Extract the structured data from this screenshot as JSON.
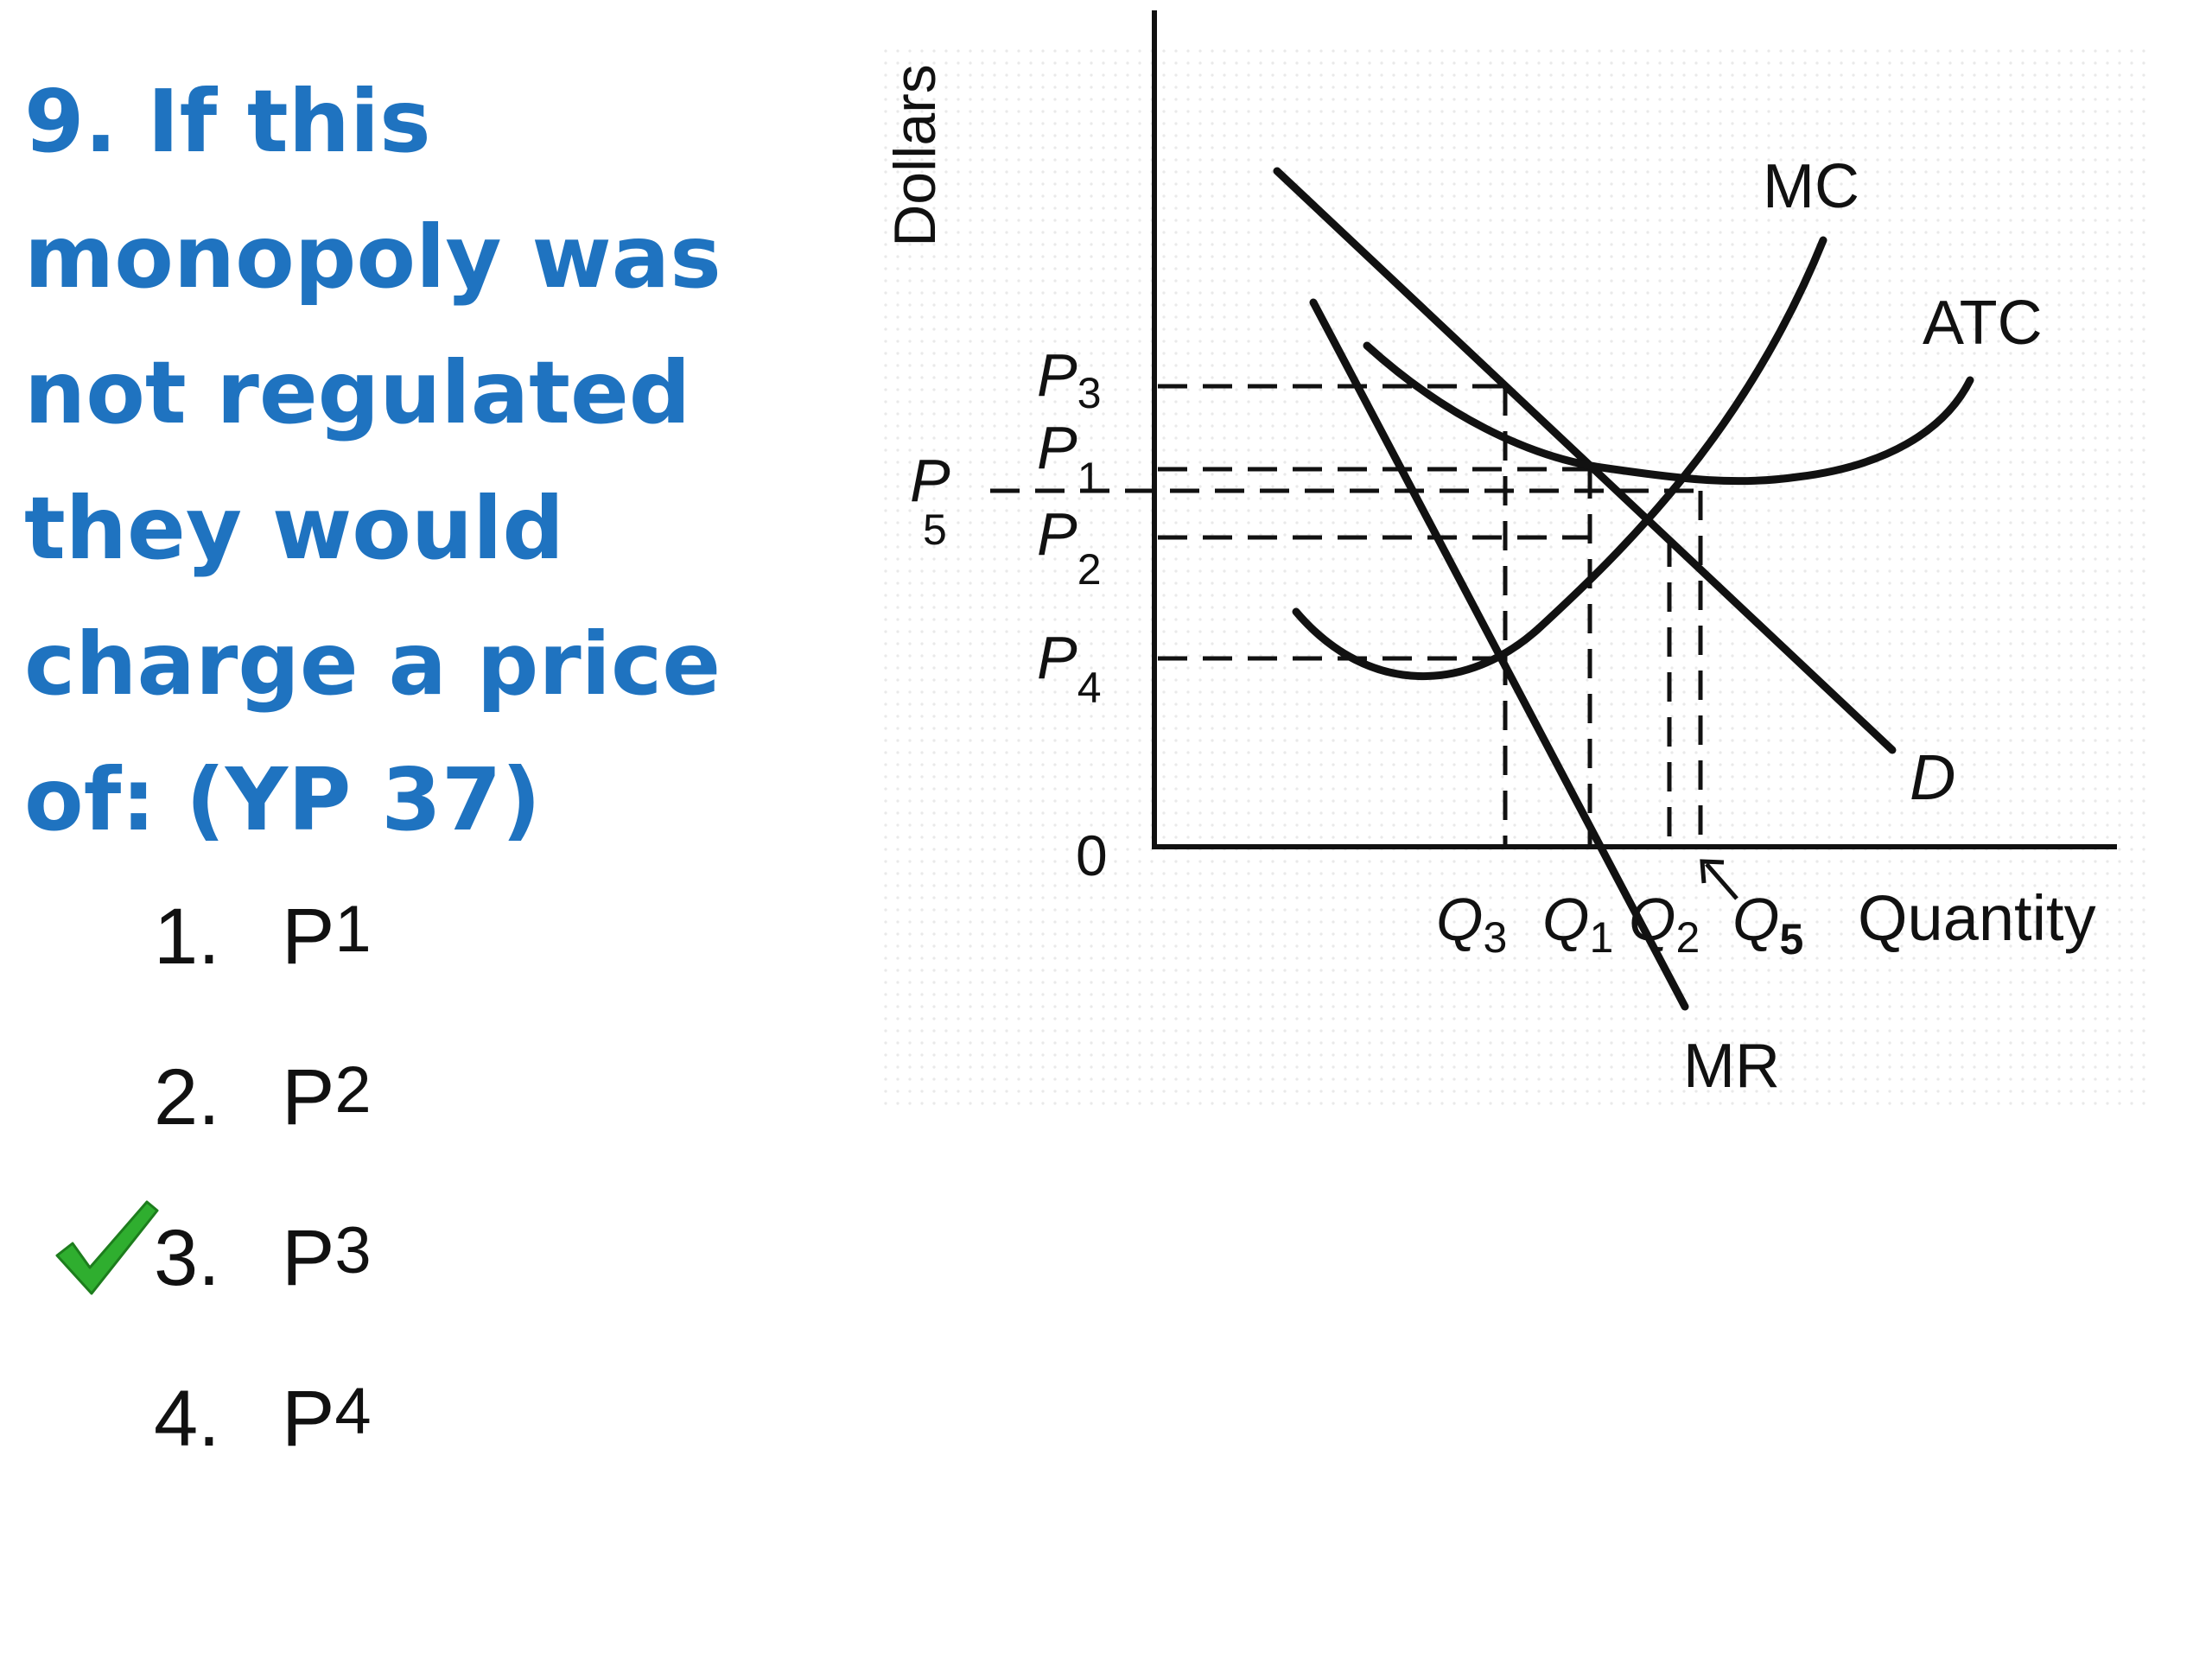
{
  "question": {
    "lines": [
      "9. If this",
      "monopoly was",
      "not regulated",
      "they would",
      "charge a price",
      "of: (YP 37)"
    ]
  },
  "answers": [
    {
      "number": "1.",
      "letter": "P",
      "sub": "1"
    },
    {
      "number": "2.",
      "letter": "P",
      "sub": "2"
    },
    {
      "number": "3.",
      "letter": "P",
      "sub": "3"
    },
    {
      "number": "4.",
      "letter": "P",
      "sub": "4"
    }
  ],
  "correct_answer_index": 2,
  "check_icon": "checkmark-icon",
  "check_color": "#2fae2f",
  "diagram": {
    "y_axis_label": "Dollars",
    "x_axis_label": "Quantity",
    "origin_label": "0",
    "curves": {
      "mc": "MC",
      "atc": "ATC",
      "demand": "D",
      "mr": "MR"
    },
    "price_labels": [
      {
        "letter": "P",
        "sub": "3"
      },
      {
        "letter": "P",
        "sub": "1"
      },
      {
        "letter": "P",
        "sub": "5"
      },
      {
        "letter": "P",
        "sub": "2"
      },
      {
        "letter": "P",
        "sub": "4"
      }
    ],
    "quantity_labels": [
      {
        "letter": "Q",
        "sub": "3"
      },
      {
        "letter": "Q",
        "sub": "1"
      },
      {
        "letter": "Q",
        "sub": "2"
      },
      {
        "letter": "Q",
        "sub": "5"
      }
    ]
  }
}
